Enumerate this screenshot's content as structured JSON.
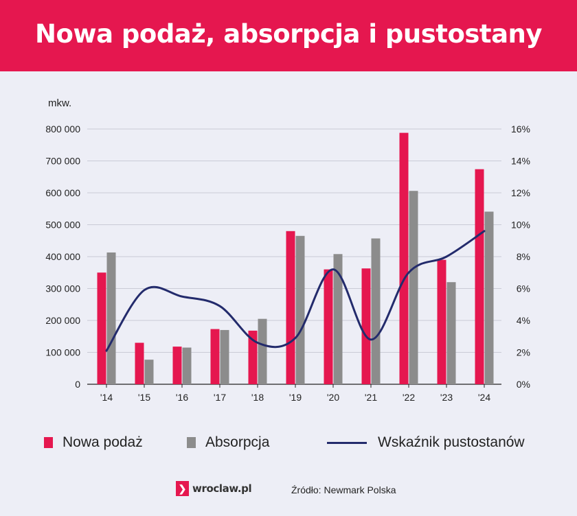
{
  "header": {
    "title": "Nowa podaż, absorpcja i pustostany"
  },
  "chart_data": {
    "type": "bar",
    "title": "Nowa podaż, absorpcja i pustostany",
    "ylabel": "mkw.",
    "categories": [
      "'14",
      "'15",
      "'16",
      "'17",
      "'18",
      "'19",
      "'20",
      "'21",
      "'22",
      "'23",
      "'24"
    ],
    "series": [
      {
        "name": "Nowa podaż",
        "type": "bar",
        "axis": "left",
        "color": "#e5174f",
        "values": [
          350000,
          130000,
          118000,
          173000,
          168000,
          480000,
          360000,
          363000,
          788000,
          390000,
          674000
        ]
      },
      {
        "name": "Absorpcja",
        "type": "bar",
        "axis": "left",
        "color": "#8c8c8c",
        "values": [
          413000,
          77000,
          115000,
          170000,
          205000,
          465000,
          408000,
          457000,
          606000,
          320000,
          541000
        ]
      },
      {
        "name": "Wskaźnik pustostanów",
        "type": "line",
        "axis": "right",
        "unit": "%",
        "color": "#232b6c",
        "values": [
          2.1,
          5.9,
          5.5,
          4.9,
          2.6,
          2.9,
          7.2,
          2.8,
          7.0,
          8.0,
          9.6
        ]
      }
    ],
    "ylim_left": [
      0,
      800000
    ],
    "ylim_right": [
      0,
      16
    ],
    "left_ticks": [
      "0",
      "100 000",
      "200 000",
      "300 000",
      "400 000",
      "500 000",
      "600 000",
      "700 000",
      "800 000"
    ],
    "right_ticks": [
      "0%",
      "2%",
      "4%",
      "6%",
      "8%",
      "10%",
      "12%",
      "14%",
      "16%"
    ],
    "grid": true,
    "legend": "bottom"
  },
  "legend": {
    "supply": "Nowa podaż",
    "absorption": "Absorpcja",
    "vacancy": "Wskaźnik pustostanów"
  },
  "footer": {
    "logo_icon": "chevron-right-icon",
    "logo_text": "wroclaw.pl",
    "source": "Źródło: Newmark Polska"
  }
}
